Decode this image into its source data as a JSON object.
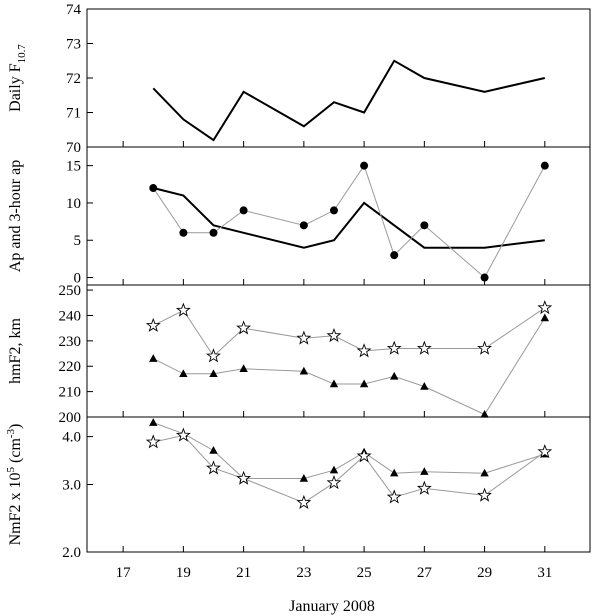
{
  "figure": {
    "xlabel": "January 2008",
    "x_ticks": [
      17,
      19,
      21,
      23,
      25,
      27,
      29,
      31
    ],
    "xlim": [
      15.8,
      32.5
    ]
  },
  "chart_data": [
    {
      "type": "line",
      "ylabel_main": "Daily F",
      "ylabel_sub": "10.7",
      "ylim": [
        70,
        74
      ],
      "y_ticks": [
        70,
        71,
        72,
        73,
        74
      ],
      "y_tick_labels": [
        "70",
        "71",
        "72",
        "73",
        "74"
      ],
      "series": [
        {
          "x": [
            18,
            19,
            20,
            21,
            23,
            24,
            25,
            26,
            27,
            29,
            31
          ],
          "values": [
            71.7,
            70.8,
            70.2,
            71.6,
            70.6,
            71.3,
            71.0,
            72.5,
            72.0,
            71.6,
            72.0
          ],
          "style": "thick",
          "marker": "none"
        }
      ]
    },
    {
      "type": "line",
      "ylabel": "Ap and 3-hour ap",
      "ylim": [
        -1,
        17.5
      ],
      "y_ticks": [
        0,
        5,
        10,
        15
      ],
      "y_tick_labels": [
        "0",
        "5",
        "10",
        "15"
      ],
      "series": [
        {
          "x": [
            18,
            19,
            20,
            21,
            23,
            24,
            25,
            26,
            27,
            29,
            31
          ],
          "values": [
            12,
            11,
            7,
            6,
            4,
            5,
            10,
            7,
            4,
            4,
            5
          ],
          "style": "thick",
          "marker": "none"
        },
        {
          "x": [
            18,
            19,
            20,
            21,
            23,
            24,
            25,
            26,
            27,
            29,
            31
          ],
          "values": [
            12,
            6,
            6,
            9,
            7,
            9,
            15,
            3,
            7,
            0,
            15
          ],
          "style": "thin",
          "marker": "circle"
        }
      ]
    },
    {
      "type": "line",
      "ylabel": "hmF2, km",
      "ylim": [
        200,
        252
      ],
      "y_ticks": [
        200,
        210,
        220,
        230,
        240,
        250
      ],
      "y_tick_labels": [
        "200",
        "210",
        "220",
        "230",
        "240",
        "250"
      ],
      "series": [
        {
          "x": [
            18,
            19,
            20,
            21,
            23,
            24,
            25,
            26,
            27,
            29,
            31
          ],
          "values": [
            236,
            242,
            224,
            235,
            231,
            232,
            226,
            227,
            227,
            227,
            243
          ],
          "style": "thin",
          "marker": "star"
        },
        {
          "x": [
            18,
            19,
            20,
            21,
            23,
            24,
            25,
            26,
            27,
            29,
            31
          ],
          "values": [
            223,
            217,
            217,
            219,
            218,
            213,
            213,
            216,
            212,
            201,
            239
          ],
          "style": "thin",
          "marker": "triangle"
        }
      ]
    },
    {
      "type": "line",
      "ylabel_main": "NmF2 x 10",
      "ylabel_sup1": "5",
      "ylabel_mid": " (cm",
      "ylabel_sup2": "-3",
      "ylabel_end": ")",
      "scale": "log",
      "ylim": [
        2.0,
        4.5
      ],
      "y_ticks": [
        2.0,
        3.0,
        4.0
      ],
      "y_tick_labels": [
        "2.0",
        "3.0",
        "4.0"
      ],
      "series": [
        {
          "x": [
            18,
            19,
            20,
            21,
            23,
            24,
            25,
            26,
            27,
            29,
            31
          ],
          "values": [
            4.35,
            4.07,
            3.68,
            3.11,
            3.11,
            3.27,
            3.64,
            3.21,
            3.24,
            3.21,
            3.6
          ],
          "style": "thin",
          "marker": "triangle"
        },
        {
          "x": [
            18,
            19,
            20,
            21,
            23,
            24,
            25,
            26,
            27,
            29,
            31
          ],
          "values": [
            3.87,
            4.03,
            3.31,
            3.11,
            2.69,
            3.03,
            3.56,
            2.78,
            2.93,
            2.81,
            3.65
          ],
          "style": "thin",
          "marker": "star"
        }
      ]
    }
  ]
}
